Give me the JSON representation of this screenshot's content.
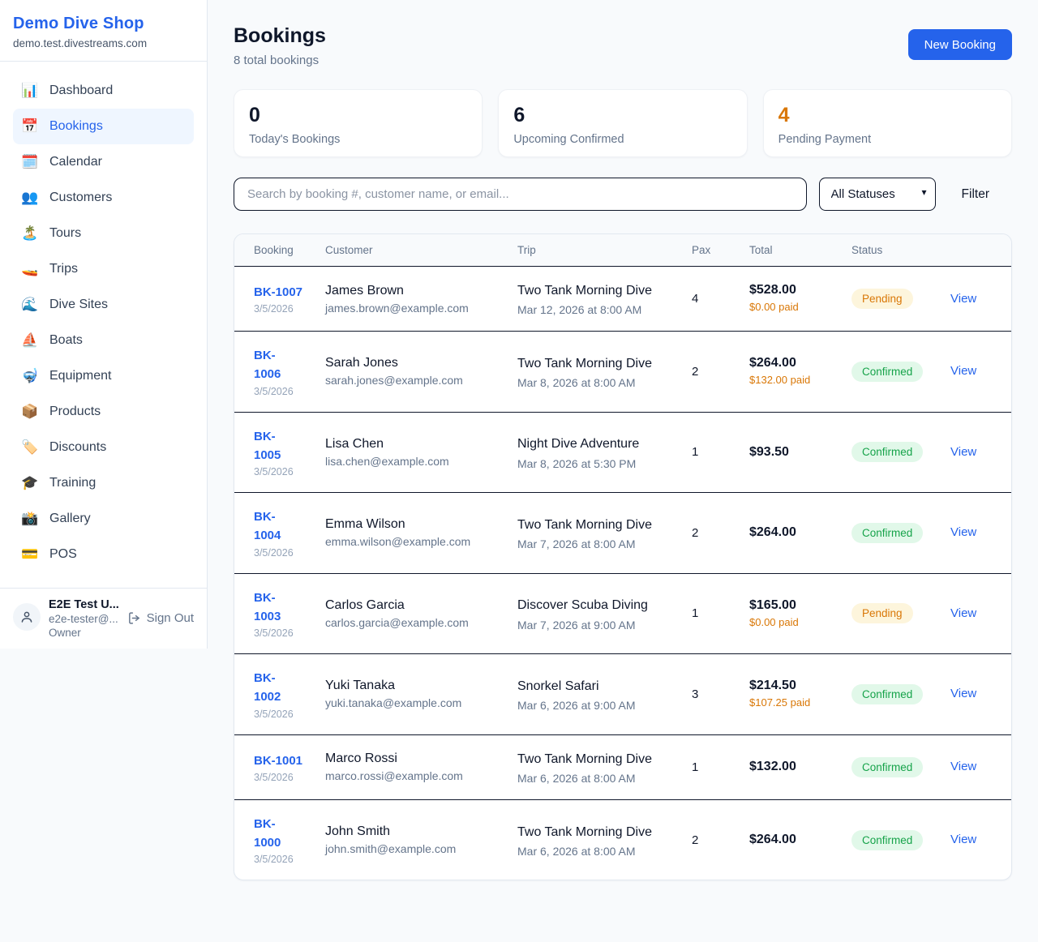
{
  "app": {
    "name": "Demo Dive Shop",
    "domain": "demo.test.divestreams.com"
  },
  "colors": {
    "accent": "#2563eb",
    "pending": "#d97706",
    "confirmed": "#16a34a",
    "text_dark": "#0f172a"
  },
  "sidebar": {
    "items": [
      {
        "icon": "📊",
        "icon_name": "dashboard",
        "label": "Dashboard",
        "active": false
      },
      {
        "icon": "📅",
        "icon_name": "bookings",
        "label": "Bookings",
        "active": true
      },
      {
        "icon": "🗓️",
        "icon_name": "calendar",
        "label": "Calendar",
        "active": false
      },
      {
        "icon": "👥",
        "icon_name": "customers",
        "label": "Customers",
        "active": false
      },
      {
        "icon": "🏝️",
        "icon_name": "tours",
        "label": "Tours",
        "active": false
      },
      {
        "icon": "🚤",
        "icon_name": "trips",
        "label": "Trips",
        "active": false
      },
      {
        "icon": "🌊",
        "icon_name": "dive-sites",
        "label": "Dive Sites",
        "active": false
      },
      {
        "icon": "⛵",
        "icon_name": "boats",
        "label": "Boats",
        "active": false
      },
      {
        "icon": "🤿",
        "icon_name": "equipment",
        "label": "Equipment",
        "active": false
      },
      {
        "icon": "📦",
        "icon_name": "products",
        "label": "Products",
        "active": false
      },
      {
        "icon": "🏷️",
        "icon_name": "discounts",
        "label": "Discounts",
        "active": false
      },
      {
        "icon": "🎓",
        "icon_name": "training",
        "label": "Training",
        "active": false
      },
      {
        "icon": "📸",
        "icon_name": "gallery",
        "label": "Gallery",
        "active": false
      },
      {
        "icon": "💳",
        "icon_name": "pos",
        "label": "POS",
        "active": false
      }
    ],
    "user": {
      "name": "E2E Test U...",
      "email": "e2e-tester@...",
      "role": "Owner",
      "sign_out_label": "Sign Out"
    }
  },
  "header": {
    "title": "Bookings",
    "subtitle": "8 total bookings",
    "new_booking_label": "New Booking"
  },
  "stats": [
    {
      "value": "0",
      "label": "Today's Bookings",
      "value_color": "#0f172a"
    },
    {
      "value": "6",
      "label": "Upcoming Confirmed",
      "value_color": "#0f172a"
    },
    {
      "value": "4",
      "label": "Pending Payment",
      "value_color": "#d97706"
    }
  ],
  "filters": {
    "search_placeholder": "Search by booking #, customer name, or email...",
    "status_selected": "All Statuses",
    "filter_label": "Filter"
  },
  "table": {
    "columns": [
      "Booking",
      "Customer",
      "Trip",
      "Pax",
      "Total",
      "Status",
      ""
    ],
    "view_label": "View",
    "rows": [
      {
        "id": "BK-1007",
        "id_wrap": false,
        "date": "3/5/2026",
        "customer": "James Brown",
        "email": "james.brown@example.com",
        "trip": "Two Tank Morning Dive",
        "trip_datetime": "Mar 12, 2026 at 8:00 AM",
        "pax": "4",
        "total": "$528.00",
        "paid": "$0.00 paid",
        "status": "Pending"
      },
      {
        "id": "BK-1006",
        "id_wrap": true,
        "date": "3/5/2026",
        "customer": "Sarah Jones",
        "email": "sarah.jones@example.com",
        "trip": "Two Tank Morning Dive",
        "trip_datetime": "Mar 8, 2026 at 8:00 AM",
        "pax": "2",
        "total": "$264.00",
        "paid": "$132.00 paid",
        "status": "Confirmed"
      },
      {
        "id": "BK-1005",
        "id_wrap": true,
        "date": "3/5/2026",
        "customer": "Lisa Chen",
        "email": "lisa.chen@example.com",
        "trip": "Night Dive Adventure",
        "trip_datetime": "Mar 8, 2026 at 5:30 PM",
        "pax": "1",
        "total": "$93.50",
        "paid": null,
        "status": "Confirmed"
      },
      {
        "id": "BK-1004",
        "id_wrap": true,
        "date": "3/5/2026",
        "customer": "Emma Wilson",
        "email": "emma.wilson@example.com",
        "trip": "Two Tank Morning Dive",
        "trip_datetime": "Mar 7, 2026 at 8:00 AM",
        "pax": "2",
        "total": "$264.00",
        "paid": null,
        "status": "Confirmed"
      },
      {
        "id": "BK-1003",
        "id_wrap": true,
        "date": "3/5/2026",
        "customer": "Carlos Garcia",
        "email": "carlos.garcia@example.com",
        "trip": "Discover Scuba Diving",
        "trip_datetime": "Mar 7, 2026 at 9:00 AM",
        "pax": "1",
        "total": "$165.00",
        "paid": "$0.00 paid",
        "status": "Pending"
      },
      {
        "id": "BK-1002",
        "id_wrap": true,
        "date": "3/5/2026",
        "customer": "Yuki Tanaka",
        "email": "yuki.tanaka@example.com",
        "trip": "Snorkel Safari",
        "trip_datetime": "Mar 6, 2026 at 9:00 AM",
        "pax": "3",
        "total": "$214.50",
        "paid": "$107.25 paid",
        "status": "Confirmed"
      },
      {
        "id": "BK-1001",
        "id_wrap": false,
        "date": "3/5/2026",
        "customer": "Marco Rossi",
        "email": "marco.rossi@example.com",
        "trip": "Two Tank Morning Dive",
        "trip_datetime": "Mar 6, 2026 at 8:00 AM",
        "pax": "1",
        "total": "$132.00",
        "paid": null,
        "status": "Confirmed"
      },
      {
        "id": "BK-1000",
        "id_wrap": true,
        "date": "3/5/2026",
        "customer": "John Smith",
        "email": "john.smith@example.com",
        "trip": "Two Tank Morning Dive",
        "trip_datetime": "Mar 6, 2026 at 8:00 AM",
        "pax": "2",
        "total": "$264.00",
        "paid": null,
        "status": "Confirmed"
      }
    ]
  }
}
